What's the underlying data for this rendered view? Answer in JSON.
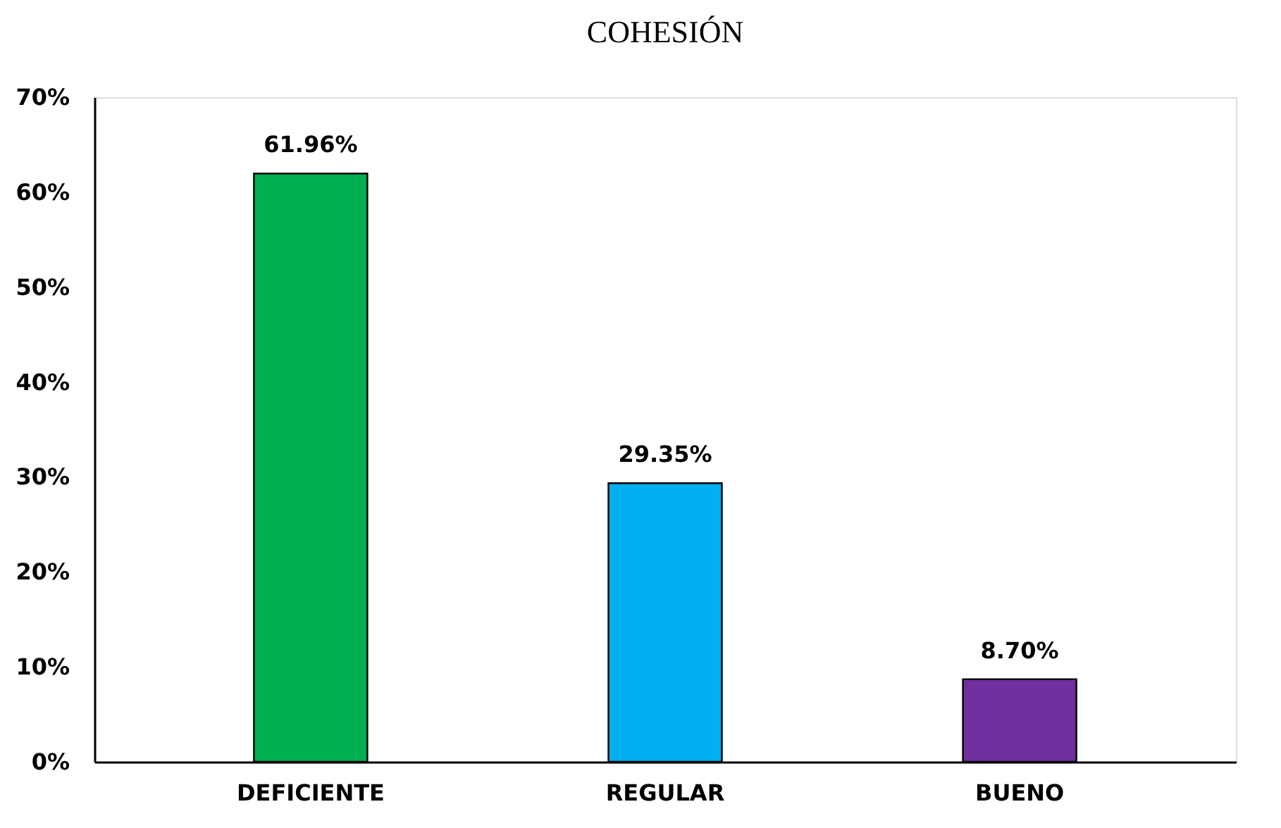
{
  "chart_data": {
    "type": "bar",
    "title": "COHESIÓN",
    "categories": [
      "DEFICIENTE",
      "REGULAR",
      "BUENO"
    ],
    "values": [
      61.96,
      29.35,
      8.7
    ],
    "colors": [
      "#00b050",
      "#00b0f0",
      "#7030a0"
    ],
    "value_labels": [
      "61.96%",
      "29.35%",
      "8.70%"
    ],
    "ylim": [
      0,
      70
    ],
    "yticks": [
      {
        "value": 0,
        "label": "0%"
      },
      {
        "value": 10,
        "label": "10%"
      },
      {
        "value": 20,
        "label": "20%"
      },
      {
        "value": 30,
        "label": "30%"
      },
      {
        "value": 40,
        "label": "40%"
      },
      {
        "value": 50,
        "label": "50%"
      },
      {
        "value": 60,
        "label": "60%"
      },
      {
        "value": 70,
        "label": "70%"
      }
    ],
    "grid": false,
    "legend": false
  }
}
